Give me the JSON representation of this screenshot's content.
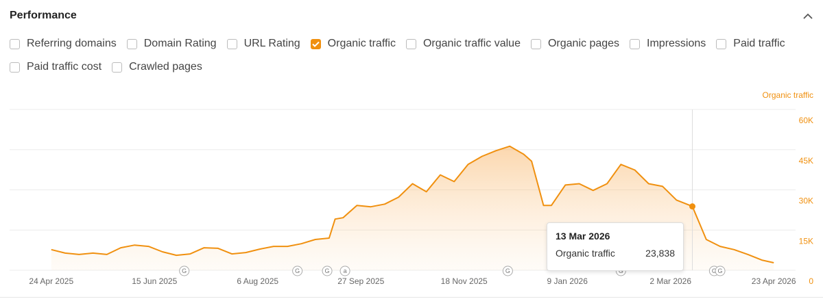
{
  "header": {
    "title": "Performance"
  },
  "checkboxes": [
    {
      "label": "Referring domains",
      "checked": false
    },
    {
      "label": "Domain Rating",
      "checked": false
    },
    {
      "label": "URL Rating",
      "checked": false
    },
    {
      "label": "Organic traffic",
      "checked": true
    },
    {
      "label": "Organic traffic value",
      "checked": false
    },
    {
      "label": "Organic pages",
      "checked": false
    },
    {
      "label": "Impressions",
      "checked": false
    },
    {
      "label": "Paid traffic",
      "checked": false
    },
    {
      "label": "Paid traffic cost",
      "checked": false
    },
    {
      "label": "Crawled pages",
      "checked": false
    }
  ],
  "chart_data": {
    "type": "line",
    "x": [
      "2025-04-24",
      "2025-05-01",
      "2025-05-08",
      "2025-05-15",
      "2025-05-22",
      "2025-05-29",
      "2025-06-05",
      "2025-06-12",
      "2025-06-19",
      "2025-06-26",
      "2025-07-03",
      "2025-07-10",
      "2025-07-17",
      "2025-07-24",
      "2025-07-31",
      "2025-08-07",
      "2025-08-14",
      "2025-08-21",
      "2025-08-28",
      "2025-09-04",
      "2025-09-11",
      "2025-09-14",
      "2025-09-18",
      "2025-09-25",
      "2025-10-02",
      "2025-10-09",
      "2025-10-16",
      "2025-10-23",
      "2025-10-30",
      "2025-11-06",
      "2025-11-13",
      "2025-11-20",
      "2025-11-27",
      "2025-12-04",
      "2025-12-11",
      "2025-12-18",
      "2025-12-22",
      "2025-12-28",
      "2026-01-01",
      "2026-01-08",
      "2026-01-15",
      "2026-01-22",
      "2026-01-29",
      "2026-02-05",
      "2026-02-12",
      "2026-02-19",
      "2026-02-26",
      "2026-03-05",
      "2026-03-13",
      "2026-03-20",
      "2026-03-27",
      "2026-04-03",
      "2026-04-10",
      "2026-04-17",
      "2026-04-23"
    ],
    "series": [
      {
        "name": "Organic traffic",
        "color": "#f0900f",
        "values": [
          7700,
          6400,
          5900,
          6400,
          5900,
          8400,
          9400,
          8900,
          6900,
          5600,
          6100,
          8400,
          8200,
          6100,
          6600,
          7900,
          8900,
          8900,
          9900,
          11500,
          12000,
          19100,
          19600,
          24200,
          23700,
          24700,
          27300,
          32300,
          29300,
          35600,
          33100,
          39500,
          42500,
          44600,
          46300,
          43300,
          40700,
          24200,
          24200,
          31800,
          32300,
          29800,
          32300,
          39500,
          37400,
          32300,
          31300,
          26200,
          23838,
          11500,
          8900,
          7700,
          5900,
          3800,
          2800
        ]
      }
    ],
    "xlim": [
      "2025-04-03",
      "2026-05-04"
    ],
    "xticks": [
      {
        "value": "2025-04-24",
        "label": "24 Apr 2025"
      },
      {
        "value": "2025-06-15",
        "label": "15 Jun 2025"
      },
      {
        "value": "2025-08-06",
        "label": "6 Aug 2025"
      },
      {
        "value": "2025-09-27",
        "label": "27 Sep 2025"
      },
      {
        "value": "2025-11-18",
        "label": "18 Nov 2025"
      },
      {
        "value": "2026-01-09",
        "label": "9 Jan 2026"
      },
      {
        "value": "2026-03-02",
        "label": "2 Mar 2026"
      },
      {
        "value": "2026-04-23",
        "label": "23 Apr 2026"
      }
    ],
    "ylim": [
      0,
      60000
    ],
    "yticks": [
      0,
      {
        "value": 15000,
        "label": "15K"
      },
      {
        "value": 30000,
        "label": "30K"
      },
      {
        "value": 45000,
        "label": "45K"
      },
      {
        "value": 60000,
        "label": "60K"
      }
    ],
    "grid": true,
    "events": [
      {
        "x": "2025-06-30",
        "label": "G"
      },
      {
        "x": "2025-08-26",
        "label": "G"
      },
      {
        "x": "2025-09-10",
        "label": "G"
      },
      {
        "x": "2025-09-19",
        "label": "a"
      },
      {
        "x": "2025-12-10",
        "label": "G"
      },
      {
        "x": "2026-02-05",
        "label": "G"
      },
      {
        "x": "2026-03-24",
        "label": "G"
      },
      {
        "x": "2026-03-27",
        "label": "G"
      }
    ],
    "tooltip": {
      "date": "13 Mar 2026",
      "value": {
        "value": 23838,
        "label": "23,838"
      }
    }
  }
}
